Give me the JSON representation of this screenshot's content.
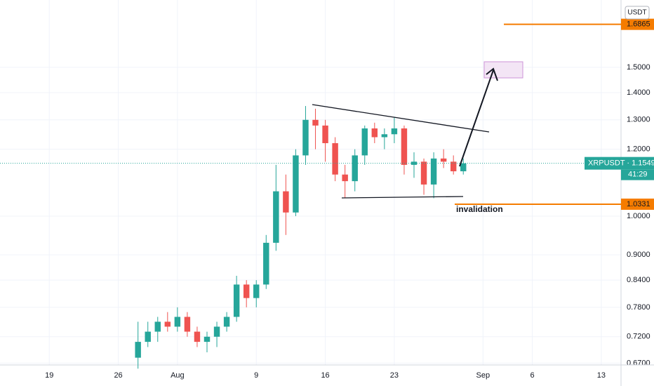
{
  "chart_data": {
    "type": "candlestick",
    "log_scale": true,
    "x": [
      "Jul 28",
      "Jul 29",
      "Jul 30",
      "Jul 31",
      "Aug 1",
      "Aug 2",
      "Aug 3",
      "Aug 4",
      "Aug 5",
      "Aug 6",
      "Aug 7",
      "Aug 8",
      "Aug 9",
      "Aug 10",
      "Aug 11",
      "Aug 12",
      "Aug 13",
      "Aug 14",
      "Aug 15",
      "Aug 16",
      "Aug 17",
      "Aug 18",
      "Aug 19",
      "Aug 20",
      "Aug 21",
      "Aug 22",
      "Aug 23",
      "Aug 24",
      "Aug 25",
      "Aug 26",
      "Aug 27",
      "Aug 28",
      "Aug 29",
      "Aug 30"
    ],
    "open": [
      0.68,
      0.71,
      0.73,
      0.75,
      0.74,
      0.76,
      0.73,
      0.71,
      0.72,
      0.74,
      0.76,
      0.83,
      0.8,
      0.83,
      0.93,
      1.07,
      1.01,
      1.18,
      1.3,
      1.28,
      1.22,
      1.12,
      1.1,
      1.18,
      1.27,
      1.24,
      1.25,
      1.27,
      1.15,
      1.16,
      1.09,
      1.17,
      1.16,
      1.13
    ],
    "high": [
      0.75,
      0.75,
      0.76,
      0.77,
      0.78,
      0.77,
      0.74,
      0.73,
      0.75,
      0.77,
      0.85,
      0.84,
      0.84,
      0.95,
      1.15,
      1.12,
      1.2,
      1.35,
      1.34,
      1.3,
      1.24,
      1.15,
      1.2,
      1.28,
      1.29,
      1.27,
      1.31,
      1.28,
      1.19,
      1.17,
      1.19,
      1.2,
      1.18,
      1.17
    ],
    "low": [
      0.66,
      0.7,
      0.71,
      0.73,
      0.73,
      0.72,
      0.7,
      0.69,
      0.7,
      0.73,
      0.75,
      0.78,
      0.78,
      0.82,
      0.91,
      0.95,
      1.0,
      1.15,
      1.2,
      1.16,
      1.1,
      1.05,
      1.07,
      1.15,
      1.22,
      1.2,
      1.22,
      1.12,
      1.11,
      1.06,
      1.05,
      1.14,
      1.12,
      1.12
    ],
    "close": [
      0.71,
      0.73,
      0.75,
      0.74,
      0.76,
      0.73,
      0.71,
      0.72,
      0.74,
      0.76,
      0.83,
      0.8,
      0.83,
      0.93,
      1.07,
      1.01,
      1.18,
      1.3,
      1.28,
      1.22,
      1.12,
      1.1,
      1.18,
      1.27,
      1.24,
      1.25,
      1.27,
      1.15,
      1.16,
      1.09,
      1.17,
      1.16,
      1.13,
      1.1549
    ],
    "up_color": "#26a69a",
    "down_color": "#ef5350",
    "xlim": [
      "Jul 14",
      "Sep 15"
    ],
    "xticks": [
      {
        "value": "Jul 19",
        "label": "19"
      },
      {
        "value": "Jul 26",
        "label": "26"
      },
      {
        "value": "Aug 1",
        "label": "Aug"
      },
      {
        "value": "Aug 9",
        "label": "9"
      },
      {
        "value": "Aug 16",
        "label": "16"
      },
      {
        "value": "Aug 23",
        "label": "23"
      },
      {
        "value": "Sep 1",
        "label": "Sep"
      },
      {
        "value": "Sep 6",
        "label": "6"
      },
      {
        "value": "Sep 13",
        "label": "13"
      }
    ],
    "ylim": [
      0.6667,
      1.802
    ],
    "yticks": [
      {
        "value": 0.67,
        "label": "0.6700"
      },
      {
        "value": 0.72,
        "label": "0.7200"
      },
      {
        "value": 0.78,
        "label": "0.7800"
      },
      {
        "value": 0.84,
        "label": "0.8400"
      },
      {
        "value": 0.9,
        "label": "0.9000"
      },
      {
        "value": 1,
        "label": "1.0000"
      },
      {
        "value": 1.2,
        "label": "1.2000"
      },
      {
        "value": 1.3,
        "label": "1.3000"
      },
      {
        "value": 1.4,
        "label": "1.4000"
      },
      {
        "value": 1.5,
        "label": "1.5000"
      }
    ],
    "grid": true,
    "currency": "USDT",
    "price_lines": [
      {
        "value": 1.6865,
        "color": "#f57c00"
      },
      {
        "value": 1.0331,
        "color": "#f57c00"
      }
    ],
    "last_label": "XRPUSDT · 1.1549",
    "countdown": "41:29",
    "annotation": "invalidation"
  }
}
